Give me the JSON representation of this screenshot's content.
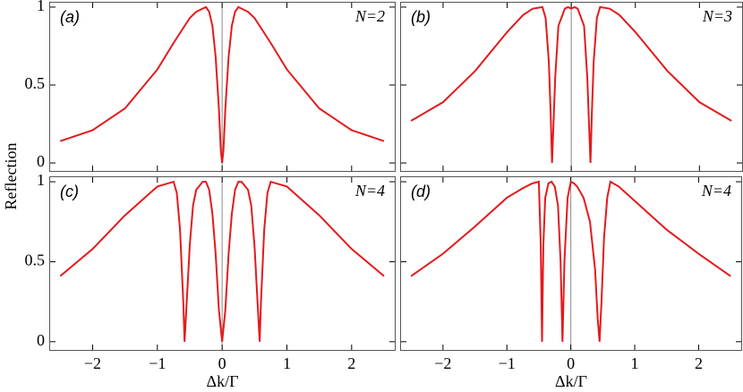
{
  "shared": {
    "ylabel": "Reflection"
  },
  "chart_data": [
    {
      "type": "line",
      "label": "(a)",
      "annotation": "N=2",
      "color": "#e41a1c",
      "x": [
        -2.5,
        -2,
        -1.5,
        -1,
        -0.75,
        -0.5,
        -0.4,
        -0.3,
        -0.25,
        -0.2,
        -0.15,
        -0.1,
        -0.05,
        -0.02,
        0,
        0.02,
        0.05,
        0.1,
        0.15,
        0.2,
        0.25,
        0.3,
        0.4,
        0.5,
        0.75,
        1,
        1.5,
        2,
        2.5
      ],
      "values": [
        0.14,
        0.21,
        0.35,
        0.6,
        0.77,
        0.93,
        0.97,
        0.99,
        1,
        0.97,
        0.88,
        0.68,
        0.35,
        0.08,
        0,
        0.08,
        0.35,
        0.68,
        0.88,
        0.97,
        1,
        0.99,
        0.97,
        0.93,
        0.77,
        0.6,
        0.35,
        0.21,
        0.14
      ],
      "xlim": [
        -2.67,
        2.68
      ],
      "ylim": [
        -0.057,
        1.034
      ],
      "reference_x": 0,
      "xticks": [
        {
          "value": -2,
          "label": "−2"
        },
        {
          "value": -1,
          "label": "−1"
        },
        0,
        1,
        2
      ],
      "yticks": [
        0,
        0.5,
        1
      ],
      "show_xticklabels": false,
      "show_yticklabels": true
    },
    {
      "type": "line",
      "label": "(b)",
      "annotation": "N=3",
      "color": "#e41a1c",
      "x": [
        -2.5,
        -2,
        -1.5,
        -1,
        -0.75,
        -0.6,
        -0.45,
        -0.4,
        -0.35,
        -0.32,
        -0.3,
        -0.25,
        -0.2,
        -0.1,
        -0.05,
        0,
        0.05,
        0.1,
        0.2,
        0.25,
        0.3,
        0.32,
        0.35,
        0.4,
        0.45,
        0.6,
        0.75,
        1,
        1.5,
        2,
        2.5
      ],
      "values": [
        0.27,
        0.39,
        0.59,
        0.84,
        0.95,
        0.99,
        1,
        0.93,
        0.65,
        0.3,
        0,
        0.55,
        0.88,
        0.99,
        1,
        0.99,
        1,
        0.99,
        0.88,
        0.55,
        0,
        0.3,
        0.65,
        0.93,
        1,
        0.99,
        0.95,
        0.84,
        0.59,
        0.39,
        0.27
      ],
      "xlim": [
        -2.67,
        2.68
      ],
      "ylim": [
        -0.057,
        1.034
      ],
      "reference_x": 0,
      "xticks": [
        {
          "value": -2,
          "label": "−2"
        },
        {
          "value": -1,
          "label": "−1"
        },
        0,
        1,
        2
      ],
      "yticks": [
        0,
        0.5,
        1
      ],
      "show_xticklabels": false,
      "show_yticklabels": false
    },
    {
      "type": "line",
      "label": "(c)",
      "annotation": "N=4",
      "color": "#e41a1c",
      "x": [
        -2.5,
        -2,
        -1.5,
        -1,
        -0.75,
        -0.7,
        -0.65,
        -0.6,
        -0.58,
        -0.5,
        -0.45,
        -0.4,
        -0.3,
        -0.25,
        -0.2,
        -0.15,
        -0.1,
        -0.05,
        0,
        0.05,
        0.1,
        0.15,
        0.2,
        0.25,
        0.3,
        0.4,
        0.45,
        0.5,
        0.58,
        0.6,
        0.65,
        0.7,
        0.75,
        1,
        1.5,
        2,
        2.5
      ],
      "values": [
        0.41,
        0.58,
        0.79,
        0.97,
        1,
        0.93,
        0.7,
        0.25,
        0,
        0.6,
        0.85,
        0.95,
        1,
        1,
        0.95,
        0.8,
        0.55,
        0.2,
        0,
        0.2,
        0.55,
        0.8,
        0.95,
        1,
        1,
        0.95,
        0.85,
        0.6,
        0,
        0.25,
        0.7,
        0.93,
        1,
        0.97,
        0.79,
        0.58,
        0.41
      ],
      "xlim": [
        -2.67,
        2.68
      ],
      "ylim": [
        -0.057,
        1.034
      ],
      "reference_x": 0,
      "xticks": [
        {
          "value": -2,
          "label": "−2"
        },
        {
          "value": -1,
          "label": "−1"
        },
        0,
        1,
        2
      ],
      "yticks": [
        0,
        0.5,
        1
      ],
      "show_xticklabels": true,
      "show_yticklabels": true,
      "xlabel": "Δk/Γ"
    },
    {
      "type": "line",
      "label": "(d)",
      "annotation": "N=4",
      "color": "#e41a1c",
      "x": [
        -2.5,
        -2,
        -1.5,
        -1,
        -0.75,
        -0.6,
        -0.5,
        -0.47,
        -0.45,
        -0.43,
        -0.4,
        -0.35,
        -0.3,
        -0.25,
        -0.2,
        -0.16,
        -0.13,
        -0.1,
        -0.05,
        0,
        0.05,
        0.1,
        0.2,
        0.3,
        0.38,
        0.42,
        0.45,
        0.48,
        0.52,
        0.57,
        0.62,
        0.75,
        1,
        1.5,
        2,
        2.5
      ],
      "values": [
        0.41,
        0.55,
        0.72,
        0.9,
        0.96,
        0.99,
        1,
        0.6,
        0,
        0.6,
        0.9,
        0.99,
        1,
        0.97,
        0.85,
        0.5,
        0,
        0.5,
        0.9,
        1,
        0.99,
        0.97,
        0.9,
        0.75,
        0.45,
        0.15,
        0,
        0.25,
        0.65,
        0.9,
        1,
        0.97,
        0.88,
        0.7,
        0.55,
        0.41
      ],
      "xlim": [
        -2.67,
        2.68
      ],
      "ylim": [
        -0.057,
        1.034
      ],
      "reference_x": 0,
      "xticks": [
        {
          "value": -2,
          "label": "−2"
        },
        {
          "value": -1,
          "label": "−1"
        },
        0,
        1,
        2
      ],
      "yticks": [
        0,
        0.5,
        1
      ],
      "show_xticklabels": true,
      "show_yticklabels": false,
      "xlabel": "Δk/Γ"
    }
  ]
}
